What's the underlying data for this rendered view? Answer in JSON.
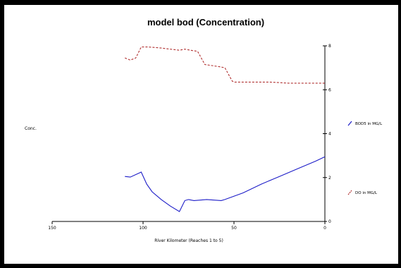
{
  "chart_data": {
    "type": "line",
    "title": "model bod (Concentration)",
    "xlabel": "River Kilometer (Reaches 1 to 5)",
    "ylabel": "Conc.",
    "xlim": [
      150,
      0
    ],
    "ylim": [
      0,
      8
    ],
    "x_ticks": [
      "150",
      "100",
      "50",
      "0"
    ],
    "y_ticks": [
      "0",
      "2",
      "4",
      "6",
      "8"
    ],
    "y_axis_side": "right",
    "grid": false,
    "legend_position": "right",
    "series": [
      {
        "name": "BOD5 in MG/L",
        "color": "#1c1cc8",
        "style": "solid",
        "x": [
          110,
          107,
          101,
          98,
          95,
          90,
          85,
          80,
          77,
          75,
          72,
          65,
          57,
          55,
          45,
          35,
          25,
          15,
          5,
          0
        ],
        "y": [
          2.05,
          2.02,
          2.25,
          1.7,
          1.35,
          1.0,
          0.7,
          0.45,
          0.95,
          1.0,
          0.95,
          1.0,
          0.95,
          1.0,
          1.3,
          1.7,
          2.05,
          2.4,
          2.75,
          2.95
        ]
      },
      {
        "name": "DO in MG/L",
        "color": "#b03030",
        "style": "dashed",
        "x": [
          110,
          107,
          104,
          101,
          97,
          90,
          85,
          80,
          77,
          74,
          70,
          66,
          62,
          58,
          55,
          51,
          50,
          40,
          30,
          20,
          10,
          0
        ],
        "y": [
          7.45,
          7.35,
          7.45,
          7.95,
          7.95,
          7.9,
          7.85,
          7.8,
          7.85,
          7.8,
          7.75,
          7.15,
          7.1,
          7.05,
          7.0,
          6.4,
          6.35,
          6.35,
          6.35,
          6.3,
          6.3,
          6.3
        ]
      }
    ]
  }
}
